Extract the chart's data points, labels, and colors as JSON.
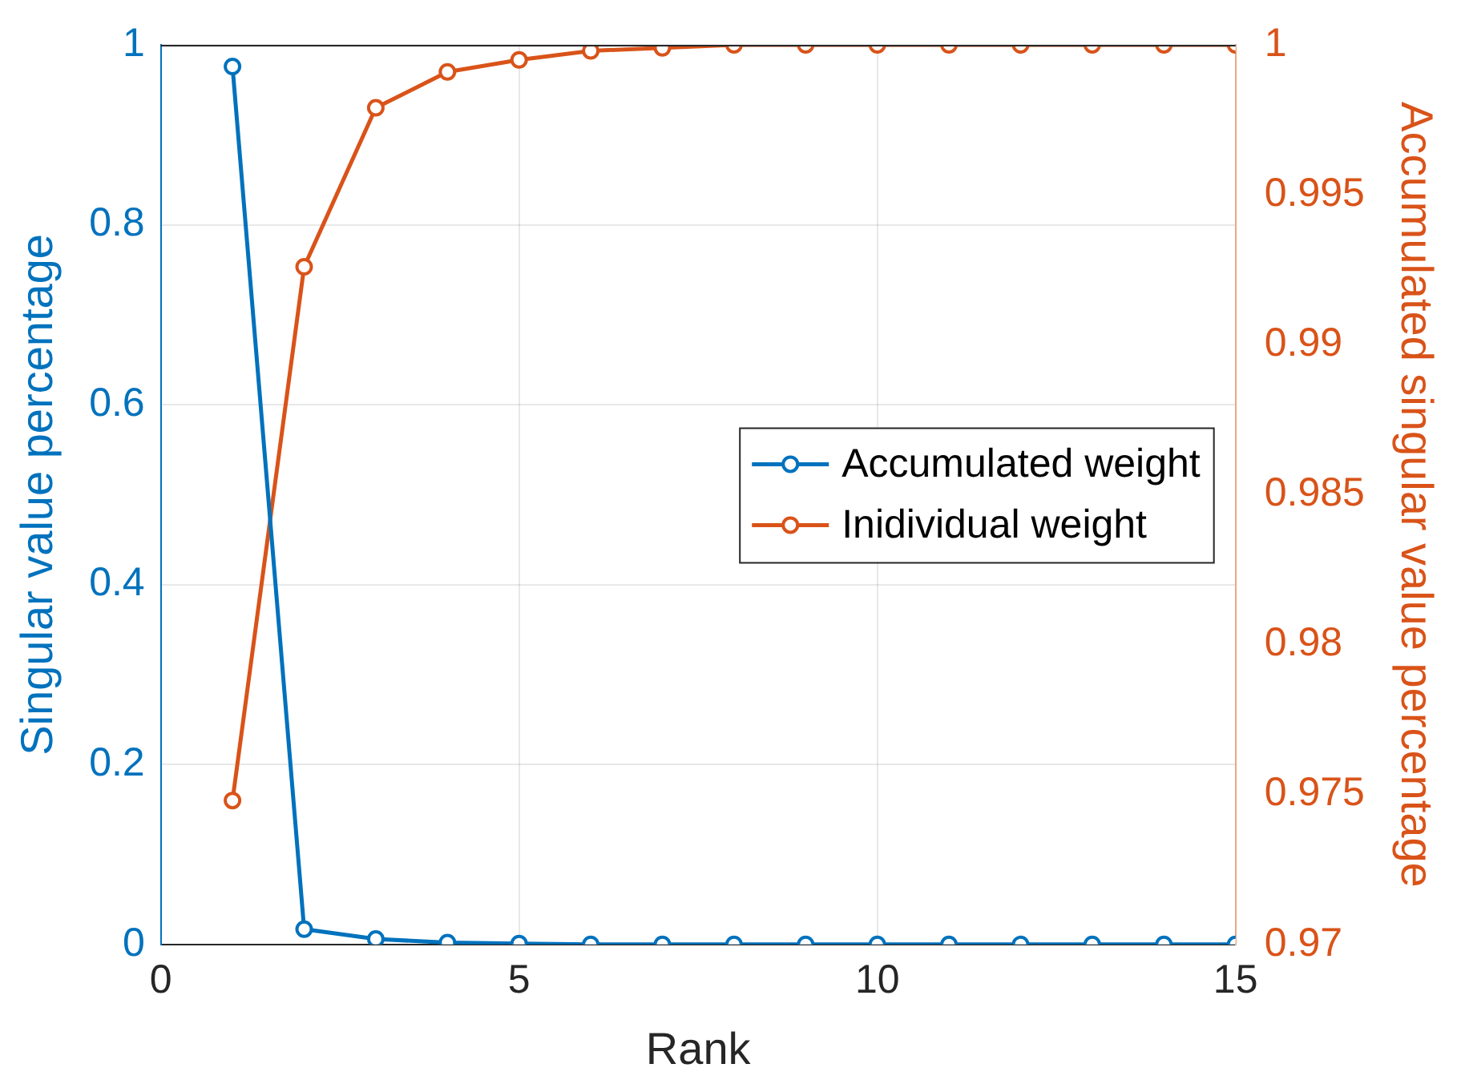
{
  "chart_data": {
    "type": "line",
    "xlabel": "Rank",
    "ylabel": "Singular value percentage",
    "y2label": "Accumulated singular value percentage",
    "x": [
      1,
      2,
      3,
      4,
      5,
      6,
      7,
      8,
      9,
      10,
      11,
      12,
      13,
      14,
      15
    ],
    "series": [
      {
        "name": "Accumulated weight",
        "color": "#0072bd",
        "values": [
          0.976,
          0.017,
          0.006,
          0.002,
          0.001,
          0,
          0,
          0,
          0,
          0,
          0,
          0,
          0,
          0,
          0
        ]
      },
      {
        "name": "Inidividual weight",
        "color": "#d95319",
        "axis": "y2",
        "values": [
          0.9748,
          0.9926,
          0.9979,
          0.9991,
          0.9995,
          0.9998,
          0.9999,
          1,
          1,
          1,
          1,
          1,
          1,
          1,
          1
        ]
      }
    ],
    "xlim": [
      0,
      15
    ],
    "xticks": [
      0,
      5,
      10,
      15
    ],
    "ylim": [
      0,
      1
    ],
    "yticks": [
      0,
      0.2,
      0.4,
      0.6,
      0.8,
      1
    ],
    "y2lim": [
      0.97,
      1
    ],
    "y2ticks": [
      0.97,
      0.975,
      0.98,
      0.985,
      0.99,
      0.995,
      1
    ],
    "grid": true,
    "legend": "right",
    "marker": "circle",
    "line_style": "solid"
  }
}
